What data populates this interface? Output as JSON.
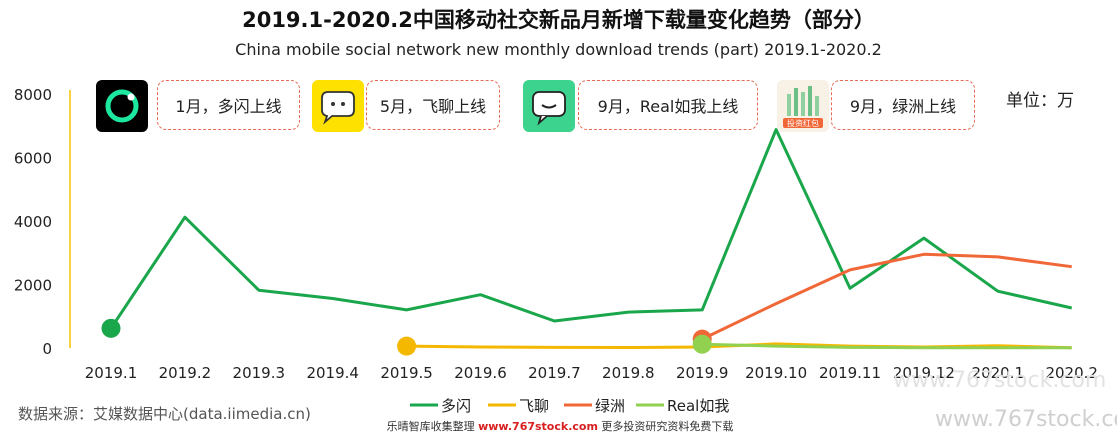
{
  "header": {
    "title": "2019.1-2020.2中国移动社交新品月新增下载量变化趋势（部分）",
    "subtitle": "China mobile social network new monthly download trends (part) 2019.1-2020.2",
    "unit": "单位：万"
  },
  "events": [
    {
      "label": "1月，多闪上线",
      "icon": "duoshan-icon",
      "color": "#000000"
    },
    {
      "label": "5月，飞聊上线",
      "icon": "feiliao-icon",
      "color": "#ffe100"
    },
    {
      "label": "9月，Real如我上线",
      "icon": "real-icon",
      "color": "#3bd38d"
    },
    {
      "label": "9月，绿洲上线",
      "icon": "lvzhou-icon",
      "color": "#f3d9b4"
    }
  ],
  "icon_texts": {
    "lvzhou": "投资红包"
  },
  "source": "数据来源：艾媒数据中心(data.iimedia.cn)",
  "footer": {
    "prefix": "乐晴智库收集整理 ",
    "site": "www.767stock.com",
    "suffix": " 更多投资研究资料免费下载"
  },
  "watermarks": {
    "top": "www.767stock.com",
    "bottom": "www.767stock.com"
  },
  "chart_data": {
    "type": "line",
    "categories": [
      "2019.1",
      "2019.2",
      "2019.3",
      "2019.4",
      "2019.5",
      "2019.6",
      "2019.7",
      "2019.8",
      "2019.9",
      "2019.10",
      "2019.11",
      "2019.12",
      "2020.1",
      "2020.2"
    ],
    "ylim": [
      0,
      8000
    ],
    "yticks": [
      0,
      2000,
      4000,
      6000,
      8000
    ],
    "grid": false,
    "legend_position": "bottom",
    "series": [
      {
        "name": "多闪",
        "color": "#1aa64a",
        "values": [
          620,
          4120,
          1820,
          1560,
          1200,
          1680,
          850,
          1130,
          1200,
          6880,
          1880,
          3460,
          1790,
          1260
        ]
      },
      {
        "name": "飞聊",
        "color": "#f5b800",
        "values": [
          null,
          null,
          null,
          null,
          60,
          30,
          20,
          15,
          30,
          130,
          60,
          30,
          70,
          10
        ]
      },
      {
        "name": "绿洲",
        "color": "#f06838",
        "values": [
          null,
          null,
          null,
          null,
          null,
          null,
          null,
          null,
          280,
          1400,
          2460,
          2950,
          2870,
          2560
        ]
      },
      {
        "name": "Real如我",
        "color": "#92d050",
        "values": [
          null,
          null,
          null,
          null,
          null,
          null,
          null,
          null,
          120,
          60,
          20,
          10,
          5,
          5
        ]
      }
    ],
    "start_markers": [
      {
        "series": "多闪",
        "category": "2019.1",
        "value": 620
      },
      {
        "series": "飞聊",
        "category": "2019.5",
        "value": 60
      },
      {
        "series": "绿洲",
        "category": "2019.9",
        "value": 280
      },
      {
        "series": "Real如我",
        "category": "2019.9",
        "value": 120
      }
    ]
  }
}
